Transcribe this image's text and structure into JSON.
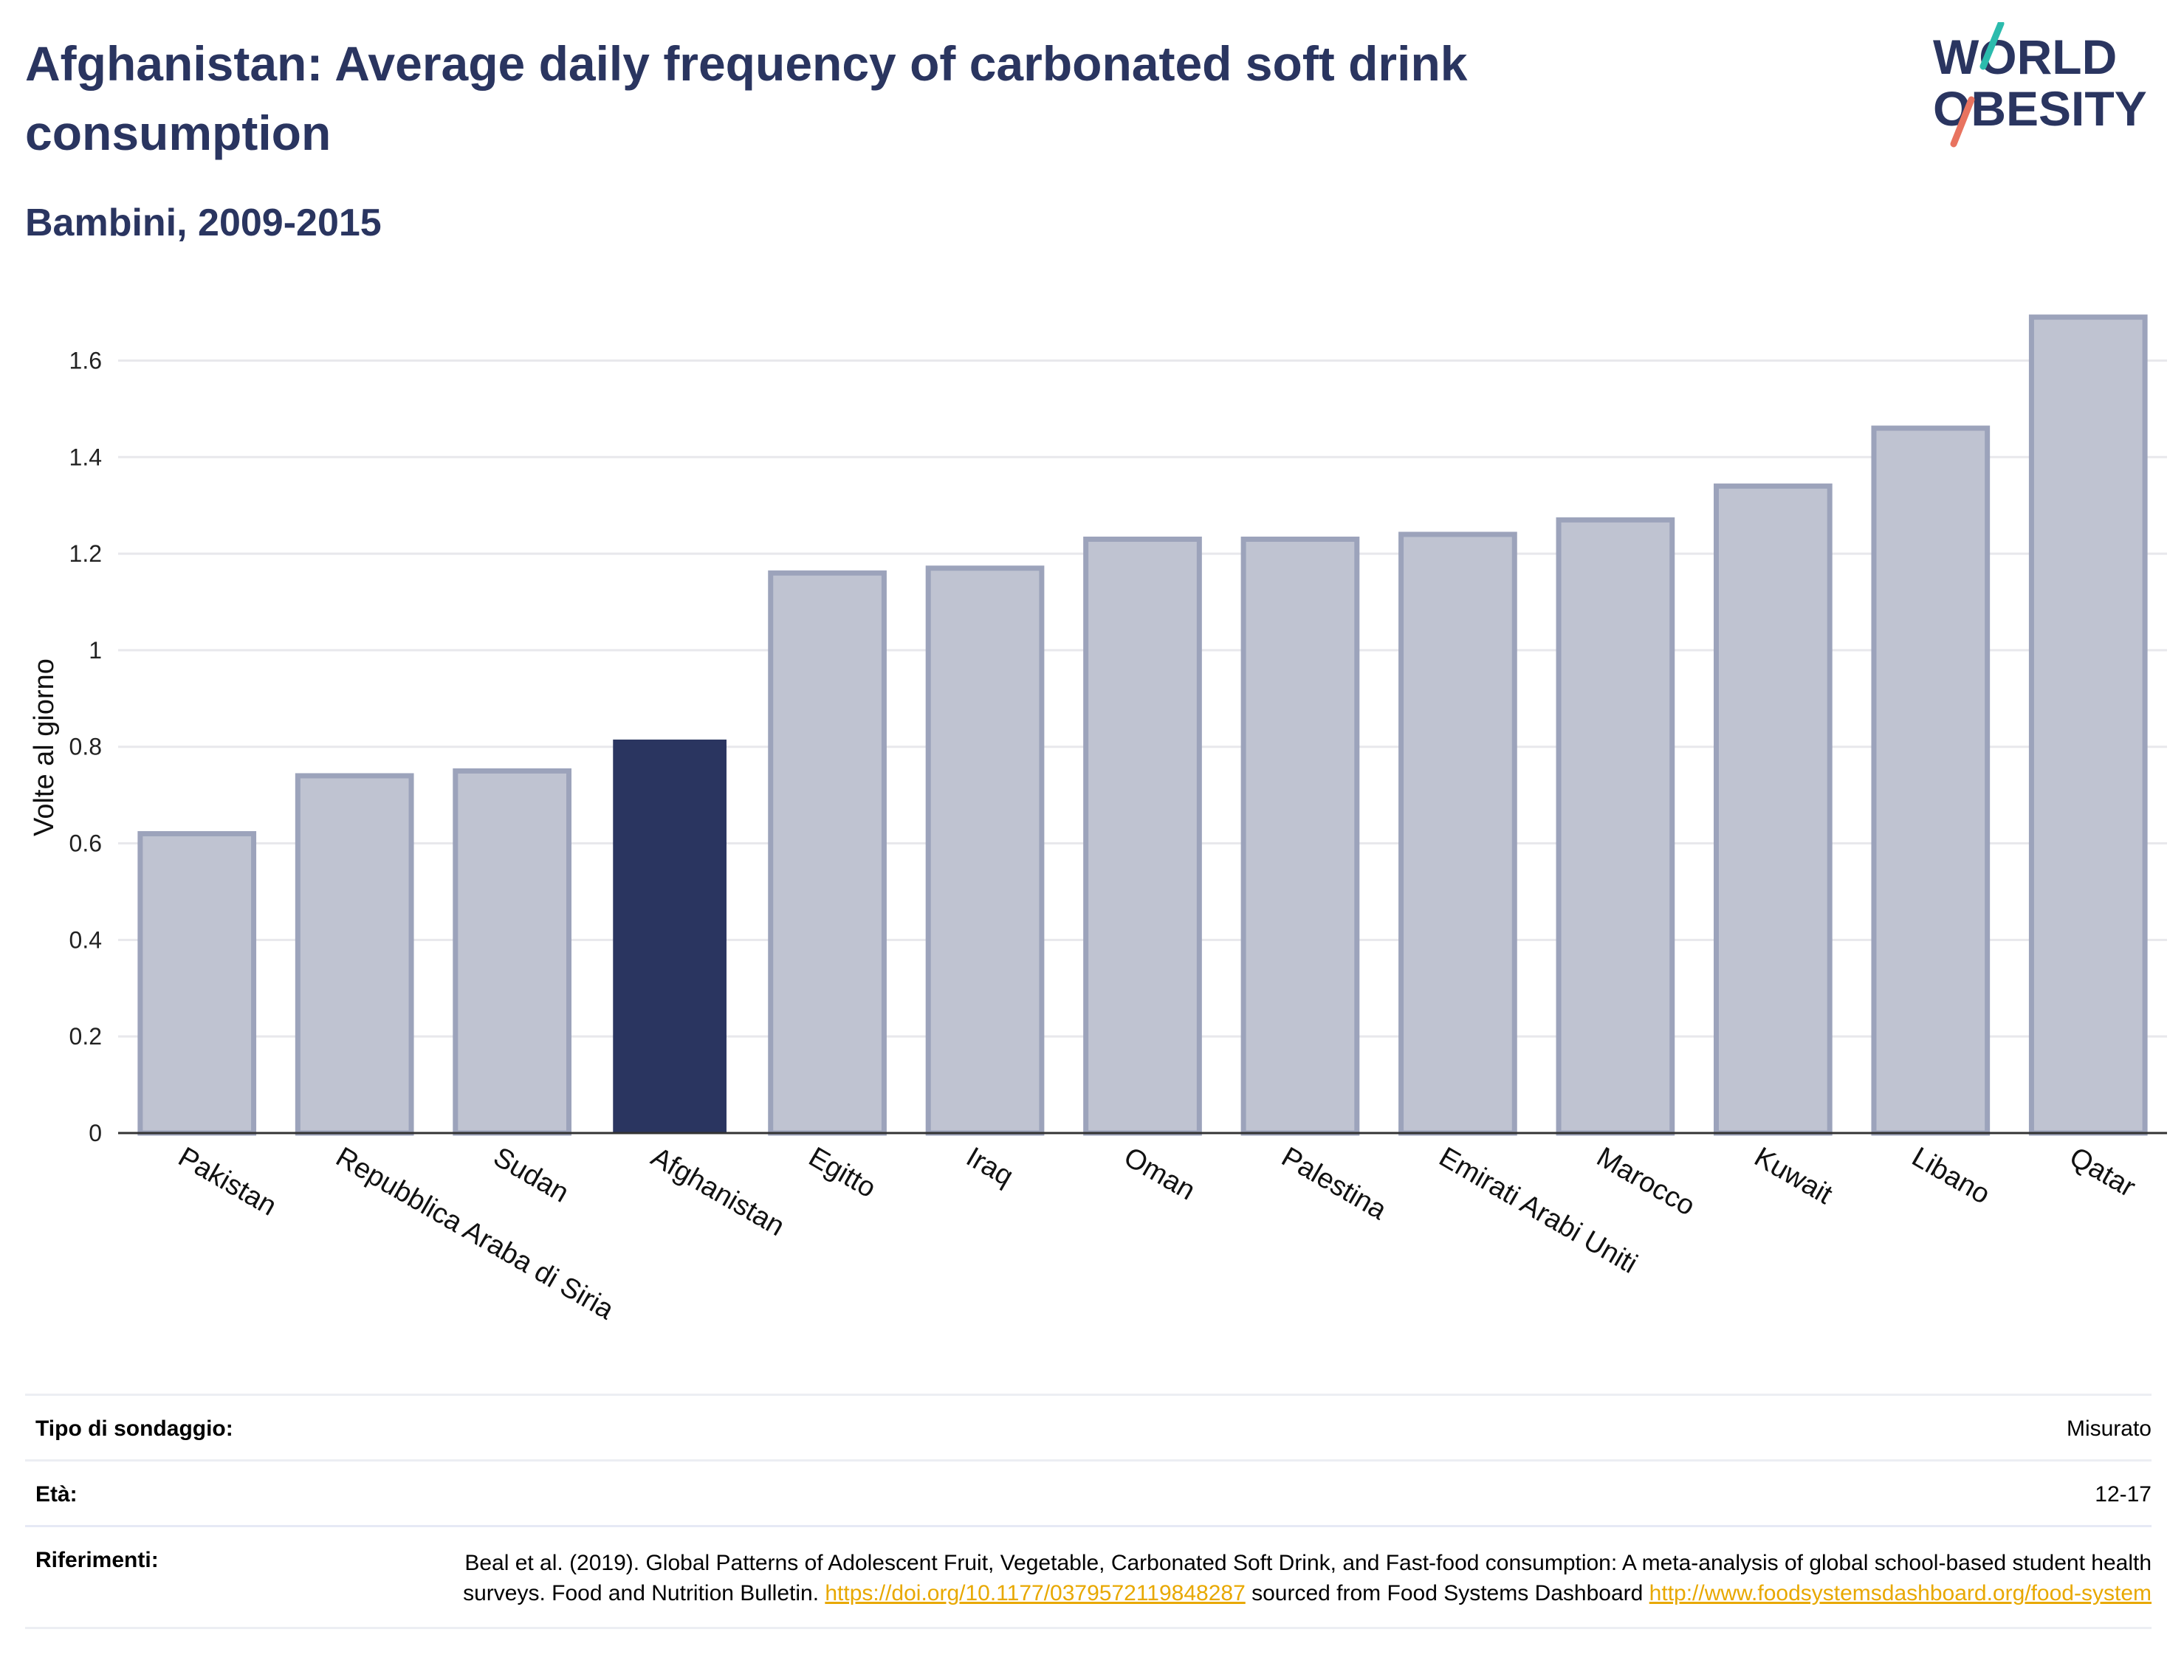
{
  "title": "Afghanistan: Average daily frequency of carbonated soft drink consumption",
  "subtitle": "Bambini, 2009-2015",
  "logo": {
    "line1": "WORLD",
    "line2": "OBESITY"
  },
  "colors": {
    "title": "#2a3560",
    "highlight_bar": "#2a3560",
    "bar_fill": "#bfc3d1",
    "bar_stroke": "#9ca3bb",
    "grid": "#e8e8ec",
    "link": "#e8a800",
    "logo_teal": "#2bbbad",
    "logo_coral": "#e8735f"
  },
  "chart_data": {
    "type": "bar",
    "categories": [
      "Pakistan",
      "Repubblica Araba di Siria",
      "Sudan",
      "Afghanistan",
      "Egitto",
      "Iraq",
      "Oman",
      "Palestina",
      "Emirati Arabi Uniti",
      "Marocco",
      "Kuwait",
      "Libano",
      "Qatar"
    ],
    "values": [
      0.62,
      0.74,
      0.75,
      0.815,
      1.16,
      1.17,
      1.23,
      1.23,
      1.24,
      1.27,
      1.34,
      1.46,
      1.69
    ],
    "highlight": "Afghanistan",
    "ylabel": "Volte al giorno",
    "xlabel": "",
    "ylim": [
      0,
      1.72
    ],
    "yticks": [
      0,
      0.2,
      0.4,
      0.6,
      0.8,
      1,
      1.2,
      1.4,
      1.6
    ],
    "ytick_labels": [
      "0",
      "0.2",
      "0.4",
      "0.6",
      "0.8",
      "1",
      "1.2",
      "1.4",
      "1.6"
    ],
    "grid": true
  },
  "meta": {
    "survey_type_label": "Tipo di sondaggio:",
    "survey_type_value": "Misurato",
    "age_label": "Età:",
    "age_value": "12-17",
    "references_label": "Riferimenti:",
    "references_text_1": "Beal et al. (2019). Global Patterns of Adolescent Fruit, Vegetable, Carbonated Soft Drink, and Fast-food consumption: A meta-analysis of global school-based student health surveys. Food and Nutrition Bulletin. ",
    "references_link_1": "https://doi.org/10.1177/0379572119848287",
    "references_text_2": " sourced from Food Systems Dashboard ",
    "references_link_2": "http://www.foodsystemsdashboard.org/food-system"
  }
}
